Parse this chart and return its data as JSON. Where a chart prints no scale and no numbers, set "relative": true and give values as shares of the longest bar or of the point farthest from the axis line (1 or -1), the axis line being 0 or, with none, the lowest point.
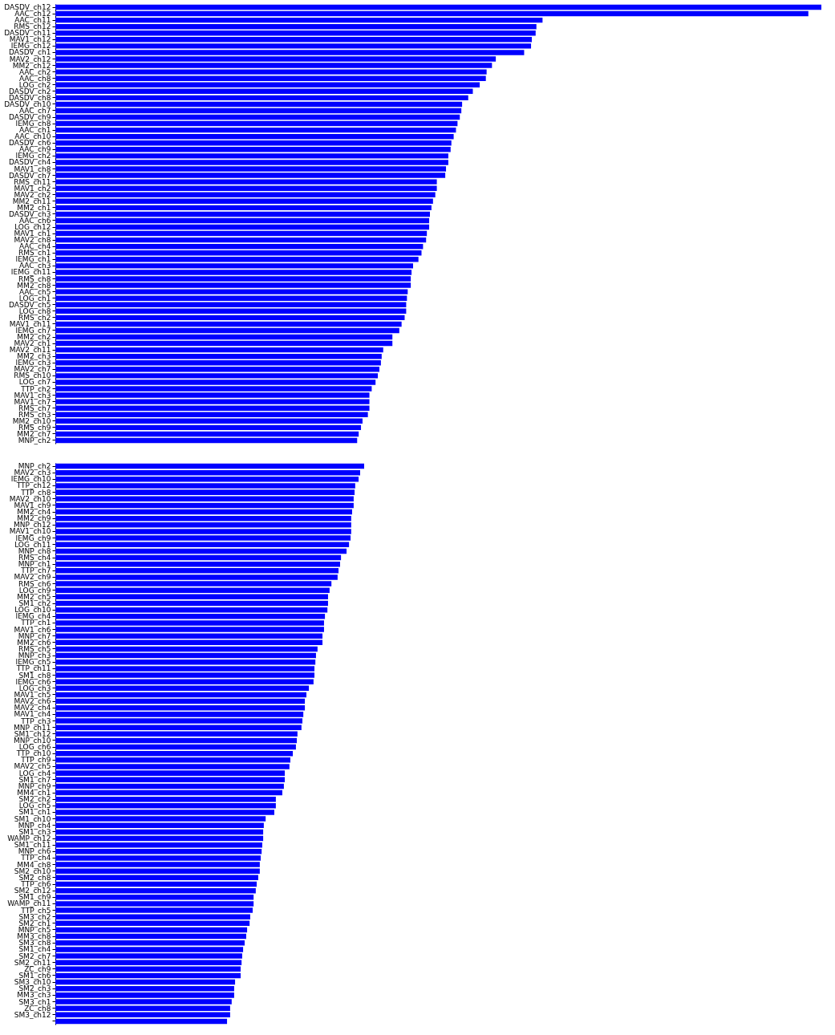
{
  "chart_data": [
    {
      "type": "bar",
      "orientation": "horizontal",
      "relative": true,
      "color": "#0000ff",
      "categories": [
        "DASDV_ch12",
        "AAC_ch12",
        "AAC_ch11",
        "RMS_ch12",
        "DASDV_ch11",
        "MAV1_ch12",
        "IEMG_ch12",
        "DASDV_ch1",
        "MAV2_ch12",
        "MM2_ch12",
        "AAC_ch2",
        "AAC_ch8",
        "LOG_ch2",
        "DASDV_ch2",
        "DASDV_ch8",
        "DASDV_ch10",
        "AAC_ch7",
        "DASDV_ch9",
        "IEMG_ch8",
        "AAC_ch1",
        "AAC_ch10",
        "DASDV_ch6",
        "AAC_ch9",
        "IEMG_ch2",
        "DASDV_ch4",
        "MAV1_ch8",
        "DASDV_ch7",
        "RMS_ch11",
        "MAV1_ch2",
        "MAV2_ch2",
        "MM2_ch11",
        "MM2_ch1",
        "DASDV_ch3",
        "AAC_ch6",
        "LOG_ch12",
        "MAV1_ch1",
        "MAV2_ch8",
        "AAC_ch4",
        "RMS_ch1",
        "IEMG_ch1",
        "AAC_ch3",
        "IEMG_ch11",
        "RMS_ch8",
        "MM2_ch8",
        "AAC_ch5",
        "LOG_ch1",
        "DASDV_ch5",
        "LOG_ch8",
        "RMS_ch2",
        "MAV1_ch11",
        "IEMG_ch7",
        "MM2_ch2",
        "MAV2_ch1",
        "MAV2_ch11",
        "MM2_ch3",
        "IEMG_ch3",
        "MAV2_ch7",
        "RMS_ch10",
        "LOG_ch7",
        "TTP_ch2",
        "MAV1_ch3",
        "MAV1_ch7",
        "RMS_ch7",
        "RMS_ch3",
        "MM2_ch10",
        "RMS_ch9",
        "MM2_ch7",
        "MNP_ch2"
      ],
      "values": [
        1,
        0.983,
        0.636,
        0.628,
        0.627,
        0.622,
        0.621,
        0.612,
        0.575,
        0.57,
        0.563,
        0.562,
        0.554,
        0.545,
        0.539,
        0.531,
        0.53,
        0.528,
        0.525,
        0.523,
        0.52,
        0.517,
        0.516,
        0.513,
        0.513,
        0.51,
        0.509,
        0.498,
        0.498,
        0.496,
        0.493,
        0.491,
        0.489,
        0.488,
        0.488,
        0.485,
        0.484,
        0.48,
        0.478,
        0.474,
        0.467,
        0.465,
        0.464,
        0.464,
        0.46,
        0.459,
        0.458,
        0.458,
        0.456,
        0.452,
        0.449,
        0.44,
        0.44,
        0.428,
        0.426,
        0.425,
        0.423,
        0.421,
        0.418,
        0.413,
        0.41,
        0.41,
        0.41,
        0.408,
        0.401,
        0.399,
        0.396,
        0.394
      ]
    },
    {
      "type": "bar",
      "orientation": "horizontal",
      "relative": true,
      "color": "#0000ff",
      "categories": [
        "MNP_ch2",
        "MAV2_ch3",
        "IEMG_ch10",
        "TTP_ch12",
        "TTP_ch8",
        "MAV2_ch10",
        "MAV1_ch9",
        "MM2_ch4",
        "MM2_ch9",
        "MNP_ch12",
        "MAV1_ch10",
        "IEMG_ch9",
        "LOG_ch11",
        "MNP_ch8",
        "RMS_ch4",
        "MNP_ch1",
        "TTP_ch7",
        "MAV2_ch9",
        "RMS_ch6",
        "LOG_ch9",
        "MM2_ch5",
        "SM1_ch2",
        "LOG_ch10",
        "IEMG_ch4",
        "TTP_ch1",
        "MAV1_ch6",
        "MNP_ch7",
        "MM2_ch6",
        "RMS_ch5",
        "MNP_ch3",
        "IEMG_ch5",
        "TTP_ch11",
        "SM1_ch8",
        "IEMG_ch6",
        "LOG_ch3",
        "MAV1_ch5",
        "MAV2_ch6",
        "MAV2_ch4",
        "MAV1_ch4",
        "TTP_ch3",
        "MNP_ch11",
        "SM1_ch12",
        "MNP_ch10",
        "LOG_ch6",
        "TTP_ch10",
        "TTP_ch9",
        "MAV2_ch5",
        "LOG_ch4",
        "SM1_ch7",
        "MNP_ch9",
        "MM4_ch1",
        "SM2_ch2",
        "LOG_ch5",
        "SM1_ch1",
        "SM1_ch10",
        "MNP_ch4",
        "SM1_ch3",
        "WAMP_ch12",
        "SM1_ch11",
        "MNP_ch6",
        "TTP_ch4",
        "MM4_ch8",
        "SM2_ch10",
        "SM2_ch8",
        "TTP_ch6",
        "SM2_ch12",
        "SM1_ch9",
        "WAMP_ch11",
        "TTP_ch5",
        "SM3_ch2",
        "SM2_ch1",
        "MNP_ch5",
        "MM3_ch8",
        "SM3_ch8",
        "SM1_ch4",
        "SM2_ch7",
        "SM2_ch11",
        "ZC_ch9",
        "SM1_ch6",
        "SM3_ch10",
        "SM2_ch3",
        "MM3_ch3",
        "SM3_ch1",
        "ZC_ch8",
        "SM3_ch12",
        null
      ],
      "values": [
        1,
        0.987,
        0.982,
        0.971,
        0.969,
        0.966,
        0.966,
        0.961,
        0.958,
        0.958,
        0.958,
        0.956,
        0.951,
        0.943,
        0.925,
        0.922,
        0.917,
        0.914,
        0.894,
        0.888,
        0.883,
        0.883,
        0.881,
        0.873,
        0.87,
        0.87,
        0.865,
        0.865,
        0.849,
        0.844,
        0.842,
        0.839,
        0.839,
        0.836,
        0.821,
        0.813,
        0.808,
        0.808,
        0.803,
        0.8,
        0.797,
        0.784,
        0.782,
        0.779,
        0.769,
        0.761,
        0.758,
        0.743,
        0.743,
        0.74,
        0.735,
        0.714,
        0.714,
        0.709,
        0.681,
        0.675,
        0.673,
        0.673,
        0.67,
        0.668,
        0.665,
        0.662,
        0.662,
        0.657,
        0.652,
        0.649,
        0.642,
        0.642,
        0.639,
        0.631,
        0.629,
        0.621,
        0.618,
        0.613,
        0.608,
        0.605,
        0.603,
        0.6,
        0.6,
        0.582,
        0.579,
        0.579,
        0.571,
        0.566,
        0.566,
        0.556
      ]
    }
  ]
}
